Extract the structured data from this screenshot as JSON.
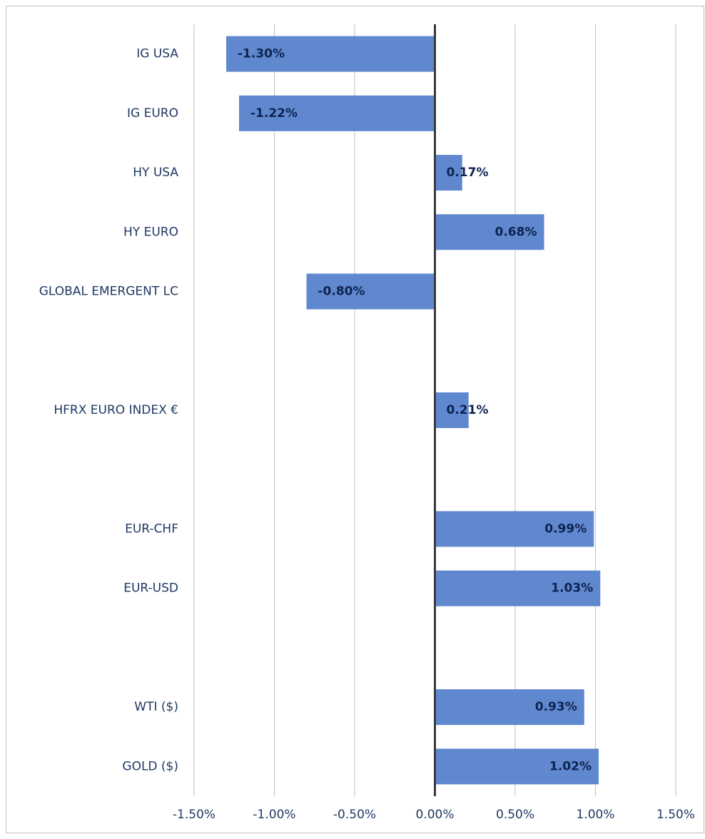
{
  "chart_data": {
    "type": "hbar",
    "categories": [
      "IG USA",
      "IG EURO",
      "HY USA",
      "HY EURO",
      "GLOBAL EMERGENT LC",
      null,
      "HFRX EURO INDEX €",
      null,
      "EUR-CHF",
      "EUR-USD",
      null,
      "WTI ($)",
      "GOLD ($)"
    ],
    "values": [
      -1.3,
      -1.22,
      0.17,
      0.68,
      -0.8,
      null,
      0.21,
      null,
      0.99,
      1.03,
      null,
      0.93,
      1.02
    ],
    "value_labels": [
      "-1.30%",
      "-1.22%",
      "0.17%",
      "0.68%",
      "-0.80%",
      null,
      "0.21%",
      null,
      "0.99%",
      "1.03%",
      null,
      "0.93%",
      "1.02%"
    ],
    "color": "#6088cf",
    "xlim": [
      -1.5,
      1.5
    ],
    "xticks": [
      {
        "value": -1.5,
        "label": "-1.50%"
      },
      {
        "value": -1.0,
        "label": "-1.00%"
      },
      {
        "value": -0.5,
        "label": "-0.50%"
      },
      {
        "value": 0,
        "label": "0.00%"
      },
      {
        "value": 0.5,
        "label": "0.50%"
      },
      {
        "value": 1.0,
        "label": "1.00%"
      },
      {
        "value": 1.5,
        "label": "1.50%"
      }
    ],
    "grid": true
  }
}
